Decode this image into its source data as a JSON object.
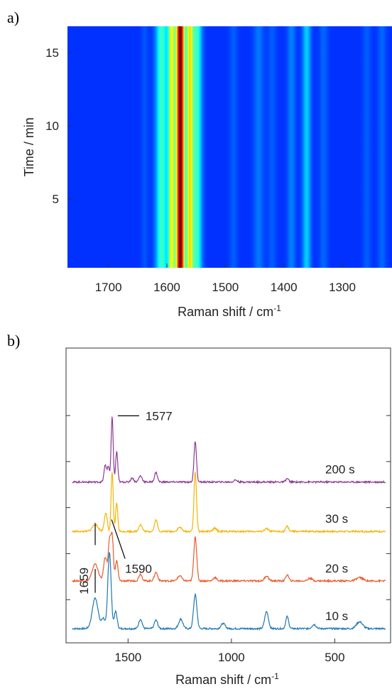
{
  "panel_a_label": "a)",
  "panel_b_label": "b)",
  "chart_data": [
    {
      "type": "heatmap",
      "panel": "a",
      "xlabel": "Raman shift / cm",
      "xlabel_superscript": "-1",
      "ylabel": "Time / min",
      "x_reversed": true,
      "xlim": [
        1770,
        1215
      ],
      "ylim": [
        0.3,
        16.8
      ],
      "x_ticks": [
        1700,
        1600,
        1500,
        1400,
        1300
      ],
      "y_ticks": [
        5,
        10,
        15
      ],
      "colormap": "jet",
      "bands": [
        {
          "center": 1638,
          "width": 4,
          "intensity": 0.04
        },
        {
          "center": 1609,
          "width": 7,
          "intensity": 0.3
        },
        {
          "center": 1592,
          "width": 4,
          "intensity": 0.5
        },
        {
          "center": 1577,
          "width": 5,
          "intensity": 1.0
        },
        {
          "center": 1561,
          "width": 4,
          "intensity": 0.52
        },
        {
          "center": 1549,
          "width": 6,
          "intensity": 0.3
        },
        {
          "center": 1486,
          "width": 5,
          "intensity": 0.05
        },
        {
          "center": 1443,
          "width": 6,
          "intensity": 0.08
        },
        {
          "center": 1420,
          "width": 5,
          "intensity": 0.05
        },
        {
          "center": 1387,
          "width": 5,
          "intensity": 0.09
        },
        {
          "center": 1361,
          "width": 5,
          "intensity": 0.18
        },
        {
          "center": 1332,
          "width": 5,
          "intensity": 0.06
        },
        {
          "center": 1258,
          "width": 5,
          "intensity": 0.05
        },
        {
          "center": 1232,
          "width": 5,
          "intensity": 0.06
        }
      ]
    },
    {
      "type": "line",
      "panel": "b",
      "xlabel": "Raman shift / cm",
      "xlabel_superscript": "-1",
      "x_reversed": true,
      "xlim": [
        1800,
        230
      ],
      "x_ticks": [
        1500,
        1000,
        500
      ],
      "series": [
        {
          "name": "10 s",
          "color": "#1f77b4",
          "offset": 0.0,
          "peaks": [
            [
              1659,
              0.9,
              14
            ],
            [
              1620,
              0.3,
              8
            ],
            [
              1590,
              2.25,
              8
            ],
            [
              1560,
              0.5,
              7
            ],
            [
              1440,
              0.28,
              8
            ],
            [
              1365,
              0.25,
              8
            ],
            [
              1245,
              0.28,
              10
            ],
            [
              1175,
              1.0,
              8
            ],
            [
              1040,
              0.15,
              10
            ],
            [
              830,
              0.5,
              9
            ],
            [
              730,
              0.35,
              7
            ],
            [
              600,
              0.12,
              10
            ],
            [
              380,
              0.2,
              15
            ]
          ]
        },
        {
          "name": "20 s",
          "color": "#ea5a2c",
          "offset": 1.4,
          "peaks": [
            [
              1659,
              0.5,
              14
            ],
            [
              1610,
              0.7,
              8
            ],
            [
              1590,
              1.1,
              6
            ],
            [
              1577,
              1.3,
              6
            ],
            [
              1555,
              0.6,
              6
            ],
            [
              1440,
              0.2,
              8
            ],
            [
              1365,
              0.25,
              8
            ],
            [
              1250,
              0.15,
              10
            ],
            [
              1175,
              1.3,
              7
            ],
            [
              1080,
              0.1,
              8
            ],
            [
              830,
              0.15,
              9
            ],
            [
              730,
              0.18,
              7
            ],
            [
              620,
              0.08,
              10
            ],
            [
              380,
              0.1,
              15
            ]
          ]
        },
        {
          "name": "30 s",
          "color": "#f5b400",
          "offset": 2.85,
          "peaks": [
            [
              1659,
              0.2,
              14
            ],
            [
              1608,
              0.55,
              7
            ],
            [
              1577,
              1.75,
              5
            ],
            [
              1555,
              0.85,
              5
            ],
            [
              1440,
              0.2,
              8
            ],
            [
              1365,
              0.35,
              7
            ],
            [
              1250,
              0.12,
              10
            ],
            [
              1175,
              1.75,
              6
            ],
            [
              1080,
              0.1,
              8
            ],
            [
              830,
              0.08,
              9
            ],
            [
              730,
              0.15,
              7
            ]
          ]
        },
        {
          "name": "200 s",
          "color": "#8e3a96",
          "offset": 4.3,
          "peaks": [
            [
              1610,
              0.5,
              6
            ],
            [
              1595,
              0.45,
              5
            ],
            [
              1577,
              1.9,
              5
            ],
            [
              1555,
              0.9,
              5
            ],
            [
              1480,
              0.12,
              7
            ],
            [
              1440,
              0.18,
              8
            ],
            [
              1365,
              0.28,
              7
            ],
            [
              1175,
              1.2,
              6
            ],
            [
              980,
              0.06,
              8
            ],
            [
              730,
              0.1,
              7
            ]
          ]
        }
      ],
      "annotations": [
        {
          "text": "1577",
          "x": 1577
        },
        {
          "text": "1590",
          "x": 1590
        },
        {
          "text": "1659",
          "x": 1659
        }
      ]
    }
  ]
}
